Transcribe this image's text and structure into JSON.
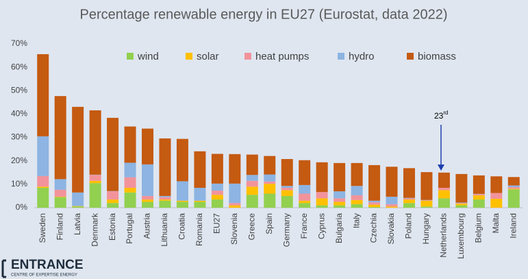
{
  "chart_data": {
    "type": "stacked_bar",
    "title": "Percentage renewable energy in EU27  (Eurostat, data 2022)",
    "categories": [
      "Sweden",
      "Finland",
      "Latvia",
      "Denmark",
      "Estonia",
      "Portugal",
      "Austria",
      "Lithuania",
      "Croatia",
      "Romania",
      "EU27",
      "Slovenia",
      "Greece",
      "Spain",
      "Germany",
      "France",
      "Cyprus",
      "Bulgaria",
      "Italy",
      "Czechia",
      "Slovakia",
      "Poland",
      "Hungary",
      "Netherlands",
      "Luxembourg",
      "Belgium",
      "Malta",
      "Ireland"
    ],
    "series": [
      {
        "name": "wind",
        "color": "#92d050",
        "values": [
          8.5,
          4.5,
          0.5,
          10.5,
          2,
          6.5,
          2.5,
          3,
          2.5,
          2.5,
          3.5,
          0,
          5.5,
          6,
          5,
          2,
          1,
          1,
          1.5,
          0.3,
          0,
          2,
          0.5,
          4,
          1,
          3.5,
          0,
          7.8
        ]
      },
      {
        "name": "solar",
        "color": "#ffc000",
        "values": [
          0.5,
          0.2,
          0.2,
          1,
          1.5,
          2,
          1,
          0.5,
          0.5,
          0.5,
          2,
          1,
          3.5,
          4.2,
          2.5,
          1,
          3,
          1.5,
          1.8,
          1,
          0.5,
          1.5,
          2.5,
          3.5,
          0.8,
          1.8,
          3.8,
          0.3
        ]
      },
      {
        "name": "heat pumps",
        "color": "#f2939b",
        "values": [
          4.5,
          3,
          0,
          2.5,
          3.5,
          4.5,
          1.5,
          1,
          0,
          0,
          1.8,
          1,
          2.5,
          1,
          1,
          3,
          2.7,
          1.5,
          2,
          1,
          1,
          0.5,
          0.2,
          1,
          0.2,
          0.5,
          2.5,
          0.7
        ]
      },
      {
        "name": "hydro",
        "color": "#8db4e2",
        "values": [
          17,
          4.5,
          5.8,
          0.1,
          0.1,
          6.2,
          13.5,
          0.5,
          8.3,
          5.5,
          3,
          8.3,
          2.5,
          3,
          0.8,
          3.7,
          0,
          3,
          4,
          0.7,
          3.2,
          0.2,
          0.1,
          0,
          0.2,
          0.1,
          0,
          0.7
        ]
      },
      {
        "name": "biomass",
        "color": "#c55a11",
        "values": [
          35.1,
          35.5,
          36.6,
          27.5,
          31.3,
          15.5,
          15.3,
          24.6,
          18.1,
          15.6,
          12.7,
          12.6,
          8.7,
          7.9,
          11.5,
          10.6,
          12.7,
          12.1,
          9.8,
          15.2,
          12.8,
          12.7,
          11.9,
          6.5,
          12.2,
          7.9,
          7.1,
          3.6
        ]
      }
    ],
    "ylim": [
      0,
      70
    ],
    "yticks": [
      {
        "value": 0,
        "label": "0%"
      },
      {
        "value": 10,
        "label": "10%"
      },
      {
        "value": 20,
        "label": "20%"
      },
      {
        "value": 30,
        "label": "30%"
      },
      {
        "value": 40,
        "label": "40%"
      },
      {
        "value": 50,
        "label": "50%"
      },
      {
        "value": 60,
        "label": "60%"
      },
      {
        "value": 70,
        "label": "70%"
      }
    ],
    "grid": false,
    "annotation": {
      "text": "23",
      "superscript": "rd"
    }
  },
  "logo": {
    "name": "ENTRANCE",
    "tagline": "CENTRE OF EXPERTISE ENERGY"
  }
}
